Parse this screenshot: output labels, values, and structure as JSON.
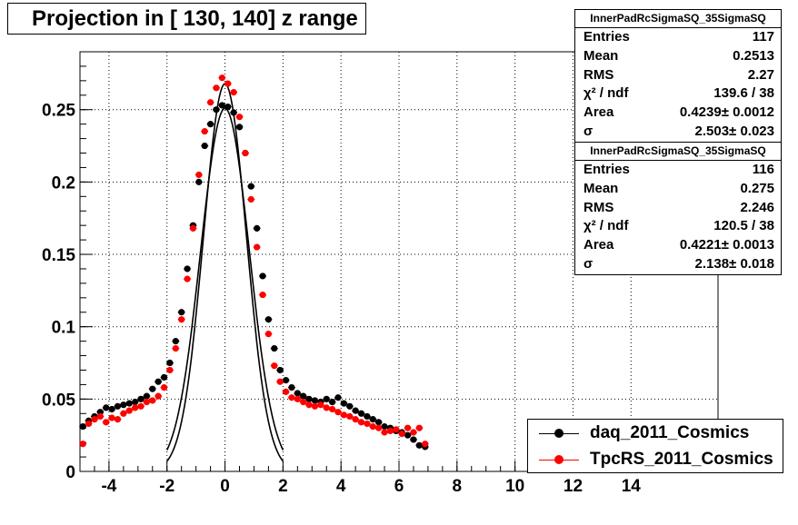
{
  "title": "Projection in [ 130, 140] z range",
  "stats": [
    {
      "name": "InnerPadRcSigmaSQ_35SigmaSQ",
      "rows": [
        {
          "label": "Entries",
          "value": "117"
        },
        {
          "label": "Mean",
          "value": "0.2513"
        },
        {
          "label": "RMS",
          "value": "2.27"
        },
        {
          "label": "χ² / ndf",
          "value": "139.6 / 38"
        },
        {
          "label": "Area",
          "value": "0.4239± 0.0012"
        },
        {
          "label": "σ",
          "value": "2.503± 0.023"
        }
      ]
    },
    {
      "name": "InnerPadRcSigmaSQ_35SigmaSQ",
      "rows": [
        {
          "label": "Entries",
          "value": "116"
        },
        {
          "label": "Mean",
          "value": "0.275"
        },
        {
          "label": "RMS",
          "value": "2.246"
        },
        {
          "label": "χ² / ndf",
          "value": "120.5 / 38"
        },
        {
          "label": "Area",
          "value": "0.4221± 0.0013"
        },
        {
          "label": "σ",
          "value": "2.138± 0.018"
        }
      ]
    }
  ],
  "legend": [
    {
      "label": "daq_2011_Cosmics",
      "color": "#000000"
    },
    {
      "label": "TpcRS_2011_Cosmics",
      "color": "#ff0000"
    }
  ],
  "chart_data": {
    "type": "scatter",
    "title": "Projection in [ 130, 140] z range",
    "xlabel": "",
    "ylabel": "",
    "xlim": [
      -5,
      17
    ],
    "ylim": [
      0,
      0.29
    ],
    "x_ticks": [
      -4,
      -2,
      0,
      2,
      4,
      6,
      8,
      10,
      12,
      14
    ],
    "y_ticks": [
      0,
      0.05,
      0.1,
      0.15,
      0.2,
      0.25
    ],
    "y_tick_labels": [
      "0",
      "0.05",
      "0.1",
      "0.15",
      "0.2",
      "0.25"
    ],
    "grid": true,
    "legend_position": "bottom-right",
    "series": [
      {
        "name": "daq_2011_Cosmics",
        "color": "#000000",
        "points": [
          [
            -4.9,
            0.031
          ],
          [
            -4.7,
            0.035
          ],
          [
            -4.5,
            0.038
          ],
          [
            -4.3,
            0.041
          ],
          [
            -4.1,
            0.044
          ],
          [
            -3.9,
            0.043
          ],
          [
            -3.7,
            0.045
          ],
          [
            -3.5,
            0.046
          ],
          [
            -3.3,
            0.047
          ],
          [
            -3.1,
            0.048
          ],
          [
            -2.9,
            0.05
          ],
          [
            -2.7,
            0.052
          ],
          [
            -2.5,
            0.057
          ],
          [
            -2.3,
            0.062
          ],
          [
            -2.1,
            0.065
          ],
          [
            -1.9,
            0.075
          ],
          [
            -1.7,
            0.09
          ],
          [
            -1.5,
            0.11
          ],
          [
            -1.3,
            0.14
          ],
          [
            -1.1,
            0.17
          ],
          [
            -0.9,
            0.2
          ],
          [
            -0.7,
            0.225
          ],
          [
            -0.5,
            0.24
          ],
          [
            -0.3,
            0.25
          ],
          [
            -0.1,
            0.253
          ],
          [
            0.1,
            0.252
          ],
          [
            0.3,
            0.248
          ],
          [
            0.5,
            0.238
          ],
          [
            0.7,
            0.22
          ],
          [
            0.9,
            0.197
          ],
          [
            1.1,
            0.168
          ],
          [
            1.3,
            0.135
          ],
          [
            1.5,
            0.105
          ],
          [
            1.7,
            0.085
          ],
          [
            1.9,
            0.07
          ],
          [
            2.1,
            0.063
          ],
          [
            2.3,
            0.058
          ],
          [
            2.5,
            0.054
          ],
          [
            2.7,
            0.052
          ],
          [
            2.9,
            0.05
          ],
          [
            3.1,
            0.049
          ],
          [
            3.3,
            0.048
          ],
          [
            3.5,
            0.05
          ],
          [
            3.7,
            0.048
          ],
          [
            3.9,
            0.051
          ],
          [
            4.1,
            0.047
          ],
          [
            4.3,
            0.045
          ],
          [
            4.5,
            0.042
          ],
          [
            4.7,
            0.04
          ],
          [
            4.9,
            0.038
          ],
          [
            5.1,
            0.036
          ],
          [
            5.3,
            0.034
          ],
          [
            5.5,
            0.031
          ],
          [
            5.7,
            0.03
          ],
          [
            5.9,
            0.028
          ],
          [
            6.1,
            0.027
          ],
          [
            6.3,
            0.025
          ],
          [
            6.5,
            0.022
          ],
          [
            6.7,
            0.018
          ],
          [
            6.9,
            0.017
          ]
        ]
      },
      {
        "name": "TpcRS_2011_Cosmics",
        "color": "#ff0000",
        "points": [
          [
            -4.9,
            0.019
          ],
          [
            -4.7,
            0.033
          ],
          [
            -4.5,
            0.036
          ],
          [
            -4.3,
            0.038
          ],
          [
            -4.1,
            0.034
          ],
          [
            -3.9,
            0.037
          ],
          [
            -3.7,
            0.036
          ],
          [
            -3.5,
            0.04
          ],
          [
            -3.3,
            0.042
          ],
          [
            -3.1,
            0.044
          ],
          [
            -2.9,
            0.045
          ],
          [
            -2.7,
            0.048
          ],
          [
            -2.5,
            0.049
          ],
          [
            -2.3,
            0.052
          ],
          [
            -2.1,
            0.058
          ],
          [
            -1.9,
            0.07
          ],
          [
            -1.7,
            0.085
          ],
          [
            -1.5,
            0.105
          ],
          [
            -1.3,
            0.133
          ],
          [
            -1.1,
            0.168
          ],
          [
            -0.9,
            0.205
          ],
          [
            -0.7,
            0.235
          ],
          [
            -0.5,
            0.255
          ],
          [
            -0.3,
            0.265
          ],
          [
            -0.1,
            0.272
          ],
          [
            0.1,
            0.268
          ],
          [
            0.3,
            0.262
          ],
          [
            0.5,
            0.245
          ],
          [
            0.7,
            0.22
          ],
          [
            0.9,
            0.188
          ],
          [
            1.1,
            0.155
          ],
          [
            1.3,
            0.122
          ],
          [
            1.5,
            0.095
          ],
          [
            1.7,
            0.073
          ],
          [
            1.9,
            0.062
          ],
          [
            2.1,
            0.055
          ],
          [
            2.3,
            0.051
          ],
          [
            2.5,
            0.05
          ],
          [
            2.7,
            0.048
          ],
          [
            2.9,
            0.046
          ],
          [
            3.1,
            0.045
          ],
          [
            3.3,
            0.046
          ],
          [
            3.5,
            0.044
          ],
          [
            3.7,
            0.043
          ],
          [
            3.9,
            0.041
          ],
          [
            4.1,
            0.039
          ],
          [
            4.3,
            0.038
          ],
          [
            4.5,
            0.036
          ],
          [
            4.7,
            0.034
          ],
          [
            4.9,
            0.033
          ],
          [
            5.1,
            0.031
          ],
          [
            5.3,
            0.03
          ],
          [
            5.5,
            0.027
          ],
          [
            5.7,
            0.028
          ],
          [
            5.9,
            0.029
          ],
          [
            6.1,
            0.026
          ],
          [
            6.3,
            0.03
          ],
          [
            6.5,
            0.027
          ],
          [
            6.7,
            0.03
          ],
          [
            6.9,
            0.019
          ]
        ]
      }
    ],
    "fits": [
      {
        "color": "#000000",
        "xmin": -2,
        "xmax": 2,
        "mean": 0,
        "amplitude": 0.251,
        "sigma": 0.84
      },
      {
        "color": "#000000",
        "xmin": -2,
        "xmax": 2,
        "mean": 0,
        "amplitude": 0.268,
        "sigma": 0.74
      }
    ]
  }
}
